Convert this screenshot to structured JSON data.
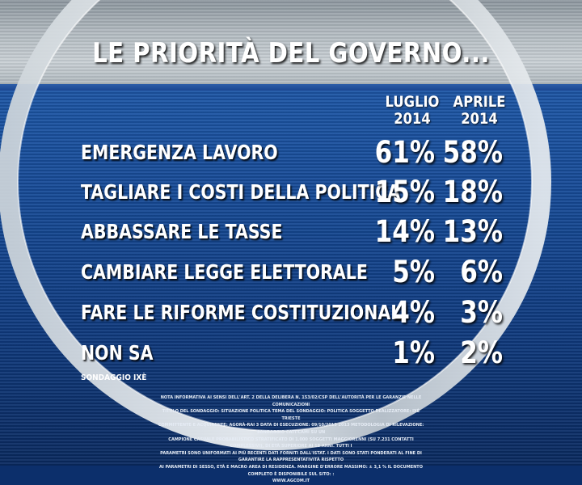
{
  "title": "LE PRIORITÀ DEL GOVERNO...",
  "columns": [
    {
      "line1": "LUGLIO",
      "line2": "2014"
    },
    {
      "line1": "APRILE",
      "line2": "2014"
    }
  ],
  "rows": [
    {
      "label": "EMERGENZA LAVORO",
      "luglio": "61%",
      "aprile": "58%"
    },
    {
      "label": "TAGLIARE I COSTI DELLA POLITICA",
      "luglio": "15%",
      "aprile": "18%"
    },
    {
      "label": "ABBASSARE LE TASSE",
      "luglio": "14%",
      "aprile": "13%"
    },
    {
      "label": "CAMBIARE LEGGE ELETTORALE",
      "luglio": "5%",
      "aprile": "6%"
    },
    {
      "label": "FARE LE RIFORME COSTITUZIONALI",
      "luglio": "4%",
      "aprile": "3%"
    },
    {
      "label": "NON SA",
      "luglio": "1%",
      "aprile": "2%"
    }
  ],
  "source": "SONDAGGIO IXÈ",
  "note": [
    "NOTA INFORMATIVA AI SENSI DELL'ART. 2 DELLA DELIBERA N. 153/02/CSP DELL'AUTORITÀ PER LE GARANZIE NELLE COMUNICAZIONI",
    "TITOLO DEL SONDAGGIO: SITUAZIONE POLITICA  TEMA DEL SONDAGGIO: POLITICA  SOGGETTO REALIZZATORE: IXÈ TRIESTE",
    "COMMITTENTE E ACQUIRENTE: AGORÀ-RAI 3  DATA DI ESECUZIONE: 09/10/2013  2013 METODOLOGIA DI RILEVAZIONE: SONDAGGIO CATI-CAMI SU UN",
    "CAMPIONE CASUALE PROBABILISTICO STRATIFICATO DI 1.000 SOGGETTI MAGGIORENNI (SU 7.231 CONTATTI COMPLESSIVI), DI ETÀ SUPERIORE AI 18 ANNI. TUTTI I",
    "PARAMETRI SONO UNIFORMATI AI PIÙ RECENTI DATI FORNITI DALL'ISTAT. I DATI SONO STATI PONDERATI AL FINE DI GARANTIRE LA RAPPRESENTATIVITÀ RISPETTO",
    "AI PARAMETRI DI SESSO, ETÀ E MACRO AREA DI RESIDENZA. MARGINE D'ERRORE MASSIMO: ± 3,1 % IL DOCUMENTO COMPLETO È DISPONIBILE SUL SITO: :",
    "WWW.AGCOM.IT"
  ],
  "chart_data": {
    "type": "table",
    "title": "LE PRIORITÀ DEL GOVERNO...",
    "categories": [
      "EMERGENZA LAVORO",
      "TAGLIARE I COSTI DELLA POLITICA",
      "ABBASSARE LE TASSE",
      "CAMBIARE LEGGE ELETTORALE",
      "FARE LE RIFORME COSTITUZIONALI",
      "NON SA"
    ],
    "series": [
      {
        "name": "LUGLIO 2014",
        "values": [
          61,
          15,
          14,
          5,
          4,
          1
        ]
      },
      {
        "name": "APRILE 2014",
        "values": [
          58,
          18,
          13,
          6,
          3,
          2
        ]
      }
    ],
    "unit": "%"
  }
}
